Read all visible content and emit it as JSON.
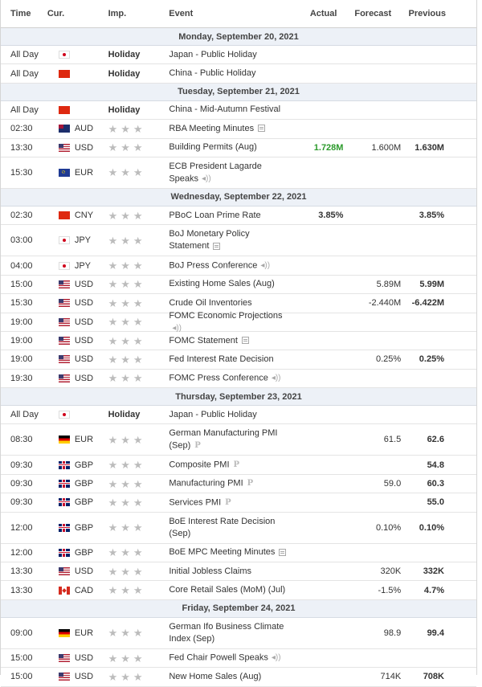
{
  "headers": {
    "time": "Time",
    "cur": "Cur.",
    "imp": "Imp.",
    "event": "Event",
    "actual": "Actual",
    "forecast": "Forecast",
    "previous": "Previous"
  },
  "days": [
    {
      "date": "Monday, September 20, 2021",
      "rows": [
        {
          "time": "All Day",
          "flag": "JP",
          "cur": "",
          "holiday": "Holiday",
          "event": "Japan - Public Holiday",
          "icon": "",
          "actual": "",
          "forecast": "",
          "previous": ""
        },
        {
          "time": "All Day",
          "flag": "CN",
          "cur": "",
          "holiday": "Holiday",
          "event": "China - Public Holiday",
          "icon": "",
          "actual": "",
          "forecast": "",
          "previous": ""
        }
      ]
    },
    {
      "date": "Tuesday, September 21, 2021",
      "rows": [
        {
          "time": "All Day",
          "flag": "CN",
          "cur": "",
          "holiday": "Holiday",
          "event": "China - Mid-Autumn Festival",
          "icon": "",
          "actual": "",
          "forecast": "",
          "previous": ""
        },
        {
          "time": "02:30",
          "flag": "AU",
          "cur": "AUD",
          "holiday": "",
          "event": "RBA Meeting Minutes",
          "icon": "document-icon",
          "actual": "",
          "forecast": "",
          "previous": ""
        },
        {
          "time": "13:30",
          "flag": "US",
          "cur": "USD",
          "holiday": "",
          "event": "Building Permits (Aug)",
          "icon": "",
          "actual": "1.728M",
          "forecast": "1.600M",
          "previous": "1.630M",
          "actual_color": "green"
        },
        {
          "time": "15:30",
          "flag": "EU",
          "cur": "EUR",
          "holiday": "",
          "event": "ECB President Lagarde Speaks",
          "icon": "speaker-icon",
          "tall": true,
          "actual": "",
          "forecast": "",
          "previous": ""
        }
      ]
    },
    {
      "date": "Wednesday, September 22, 2021",
      "rows": [
        {
          "time": "02:30",
          "flag": "CN",
          "cur": "CNY",
          "holiday": "",
          "event": "PBoC Loan Prime Rate",
          "icon": "",
          "actual": "3.85%",
          "forecast": "",
          "previous": "3.85%"
        },
        {
          "time": "03:00",
          "flag": "JP",
          "cur": "JPY",
          "holiday": "",
          "event": "BoJ Monetary Policy Statement",
          "icon": "document-icon",
          "tall": true,
          "actual": "",
          "forecast": "",
          "previous": ""
        },
        {
          "time": "04:00",
          "flag": "JP",
          "cur": "JPY",
          "holiday": "",
          "event": "BoJ Press Conference",
          "icon": "speaker-icon",
          "actual": "",
          "forecast": "",
          "previous": ""
        },
        {
          "time": "15:00",
          "flag": "US",
          "cur": "USD",
          "holiday": "",
          "event": "Existing Home Sales (Aug)",
          "icon": "",
          "actual": "",
          "forecast": "5.89M",
          "previous": "5.99M"
        },
        {
          "time": "15:30",
          "flag": "US",
          "cur": "USD",
          "holiday": "",
          "event": "Crude Oil Inventories",
          "icon": "",
          "actual": "",
          "forecast": "-2.440M",
          "previous": "-6.422M"
        },
        {
          "time": "19:00",
          "flag": "US",
          "cur": "USD",
          "holiday": "",
          "event": "FOMC Economic Projections",
          "icon": "speaker-icon",
          "actual": "",
          "forecast": "",
          "previous": ""
        },
        {
          "time": "19:00",
          "flag": "US",
          "cur": "USD",
          "holiday": "",
          "event": "FOMC Statement",
          "icon": "document-icon",
          "actual": "",
          "forecast": "",
          "previous": ""
        },
        {
          "time": "19:00",
          "flag": "US",
          "cur": "USD",
          "holiday": "",
          "event": "Fed Interest Rate Decision",
          "icon": "",
          "actual": "",
          "forecast": "0.25%",
          "previous": "0.25%"
        },
        {
          "time": "19:30",
          "flag": "US",
          "cur": "USD",
          "holiday": "",
          "event": "FOMC Press Conference",
          "icon": "speaker-icon",
          "actual": "",
          "forecast": "",
          "previous": ""
        }
      ]
    },
    {
      "date": "Thursday, September 23, 2021",
      "rows": [
        {
          "time": "All Day",
          "flag": "JP",
          "cur": "",
          "holiday": "Holiday",
          "event": "Japan - Public Holiday",
          "icon": "",
          "actual": "",
          "forecast": "",
          "previous": ""
        },
        {
          "time": "08:30",
          "flag": "DE",
          "cur": "EUR",
          "holiday": "",
          "event": "German Manufacturing PMI (Sep)",
          "icon": "preliminary-icon",
          "tall": true,
          "actual": "",
          "forecast": "61.5",
          "previous": "62.6"
        },
        {
          "time": "09:30",
          "flag": "GB",
          "cur": "GBP",
          "holiday": "",
          "event": "Composite PMI",
          "icon": "preliminary-icon",
          "actual": "",
          "forecast": "",
          "previous": "54.8"
        },
        {
          "time": "09:30",
          "flag": "GB",
          "cur": "GBP",
          "holiday": "",
          "event": "Manufacturing PMI",
          "icon": "preliminary-icon",
          "actual": "",
          "forecast": "59.0",
          "previous": "60.3"
        },
        {
          "time": "09:30",
          "flag": "GB",
          "cur": "GBP",
          "holiday": "",
          "event": "Services PMI",
          "icon": "preliminary-icon",
          "actual": "",
          "forecast": "",
          "previous": "55.0"
        },
        {
          "time": "12:00",
          "flag": "GB",
          "cur": "GBP",
          "holiday": "",
          "event": "BoE Interest Rate Decision (Sep)",
          "icon": "",
          "tall": true,
          "actual": "",
          "forecast": "0.10%",
          "previous": "0.10%"
        },
        {
          "time": "12:00",
          "flag": "GB",
          "cur": "GBP",
          "holiday": "",
          "event": "BoE MPC Meeting Minutes",
          "icon": "document-icon",
          "actual": "",
          "forecast": "",
          "previous": ""
        },
        {
          "time": "13:30",
          "flag": "US",
          "cur": "USD",
          "holiday": "",
          "event": "Initial Jobless Claims",
          "icon": "",
          "actual": "",
          "forecast": "320K",
          "previous": "332K"
        },
        {
          "time": "13:30",
          "flag": "CA",
          "cur": "CAD",
          "holiday": "",
          "event": "Core Retail Sales (MoM) (Jul)",
          "icon": "",
          "actual": "",
          "forecast": "-1.5%",
          "previous": "4.7%"
        }
      ]
    },
    {
      "date": "Friday, September 24, 2021",
      "rows": [
        {
          "time": "09:00",
          "flag": "DE",
          "cur": "EUR",
          "holiday": "",
          "event": "German Ifo Business Climate Index (Sep)",
          "icon": "",
          "tall": true,
          "actual": "",
          "forecast": "98.9",
          "previous": "99.4"
        },
        {
          "time": "15:00",
          "flag": "US",
          "cur": "USD",
          "holiday": "",
          "event": "Fed Chair Powell Speaks",
          "icon": "speaker-icon",
          "actual": "",
          "forecast": "",
          "previous": ""
        },
        {
          "time": "15:00",
          "flag": "US",
          "cur": "USD",
          "holiday": "",
          "event": "New Home Sales (Aug)",
          "icon": "",
          "actual": "",
          "forecast": "714K",
          "previous": "708K"
        }
      ]
    }
  ]
}
